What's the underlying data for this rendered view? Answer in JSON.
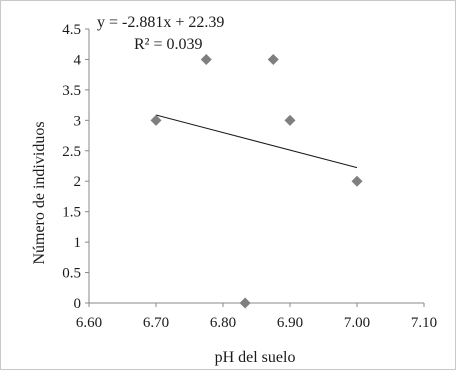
{
  "chart_data": {
    "type": "scatter",
    "title": "",
    "xlabel": "pH del suelo",
    "ylabel": "Número de individuos",
    "xlim": [
      6.6,
      7.1
    ],
    "ylim": [
      0,
      4.5
    ],
    "x_ticks": [
      "6.60",
      "6.70",
      "6.80",
      "6.90",
      "7.00",
      "7.10"
    ],
    "y_ticks": [
      "0",
      "0.5",
      "1",
      "1.5",
      "2",
      "2.5",
      "3",
      "3.5",
      "4",
      "4.5"
    ],
    "grid": false,
    "legend": "none",
    "marker": "diamond",
    "marker_color": "#7f7f7f",
    "series": [
      {
        "x": [
          6.7,
          6.775,
          6.833,
          6.875,
          6.9,
          7.0
        ],
        "y": [
          3,
          4,
          0,
          4,
          3,
          2
        ]
      }
    ],
    "trendline": {
      "type": "linear",
      "slope": -2.881,
      "intercept": 22.39,
      "x_range": [
        6.7,
        7.0
      ],
      "color": "#1a1a1a"
    },
    "annotations": {
      "equation": "y = -2.881x + 22.39",
      "r_squared": "R² = 0.039"
    }
  }
}
